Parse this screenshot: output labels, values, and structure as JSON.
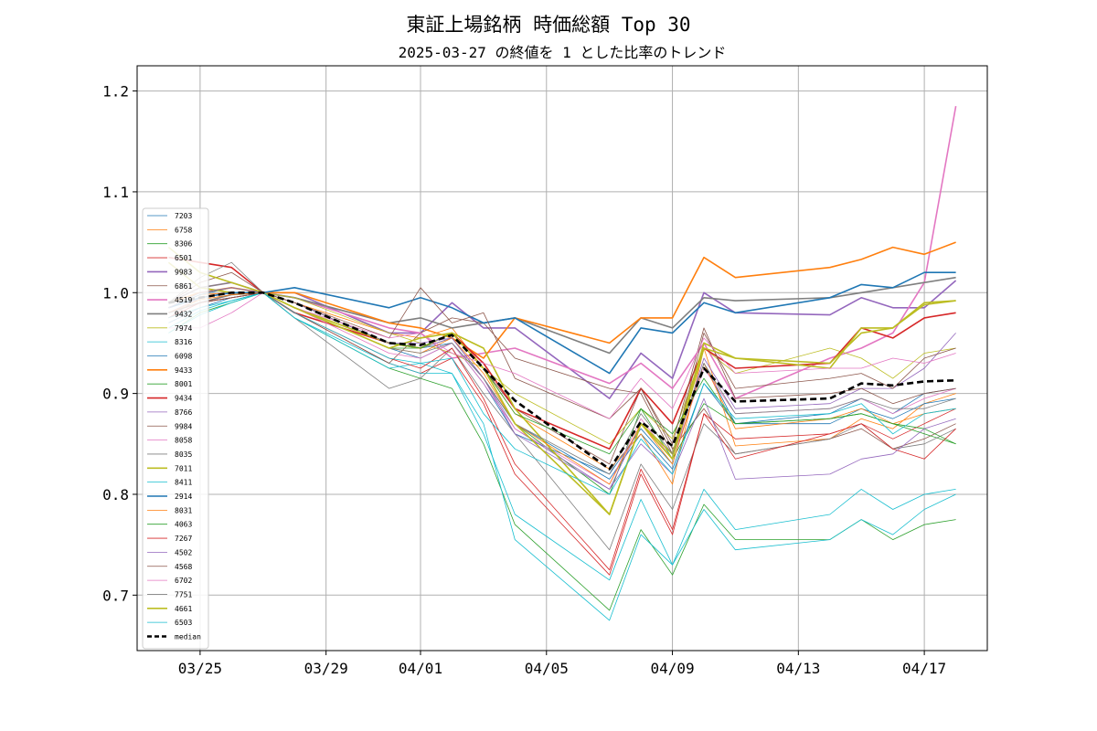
{
  "chart_data": {
    "type": "line",
    "title": "東証上場銘柄 時価総額 Top 30",
    "subtitle": "2025-03-27 の終値を 1 とした比率のトレンド",
    "xlabel": "",
    "ylabel": "",
    "ylim": [
      0.645,
      1.225
    ],
    "xlim": [
      "2025-03-23",
      "2025-04-19"
    ],
    "grid": true,
    "legend_position": "left",
    "x_ticks": [
      {
        "date": "2025-03-25",
        "label": "03/25"
      },
      {
        "date": "2025-03-29",
        "label": "03/29"
      },
      {
        "date": "2025-04-01",
        "label": "04/01"
      },
      {
        "date": "2025-04-05",
        "label": "04/05"
      },
      {
        "date": "2025-04-09",
        "label": "04/09"
      },
      {
        "date": "2025-04-13",
        "label": "04/13"
      },
      {
        "date": "2025-04-17",
        "label": "04/17"
      }
    ],
    "y_ticks": [
      {
        "value": 0.7,
        "label": "0.7"
      },
      {
        "value": 0.8,
        "label": "0.8"
      },
      {
        "value": 0.9,
        "label": "0.9"
      },
      {
        "value": 1.0,
        "label": "1.0"
      },
      {
        "value": 1.1,
        "label": "1.1"
      },
      {
        "value": 1.2,
        "label": "1.2"
      }
    ],
    "x": [
      "2025-03-24",
      "2025-03-25",
      "2025-03-26",
      "2025-03-27",
      "2025-03-28",
      "2025-03-31",
      "2025-04-01",
      "2025-04-02",
      "2025-04-03",
      "2025-04-04",
      "2025-04-07",
      "2025-04-08",
      "2025-04-09",
      "2025-04-10",
      "2025-04-11",
      "2025-04-14",
      "2025-04-15",
      "2025-04-16",
      "2025-04-17",
      "2025-04-18"
    ],
    "series": [
      {
        "name": "7203",
        "color": "#1f77b4",
        "width": 0.8,
        "values": [
          0.97,
          0.985,
          0.995,
          1.0,
          0.985,
          0.945,
          0.935,
          0.95,
          0.915,
          0.87,
          0.815,
          0.86,
          0.825,
          0.91,
          0.87,
          0.88,
          0.895,
          0.88,
          0.9,
          0.905
        ]
      },
      {
        "name": "6758",
        "color": "#ff7f0e",
        "width": 0.8,
        "values": [
          0.985,
          0.998,
          1.0,
          1.0,
          0.99,
          0.96,
          0.955,
          0.965,
          0.925,
          0.88,
          0.825,
          0.86,
          0.81,
          0.945,
          0.848,
          0.855,
          0.875,
          0.865,
          0.89,
          0.9
        ]
      },
      {
        "name": "8306",
        "color": "#2ca02c",
        "width": 0.8,
        "values": [
          0.96,
          0.98,
          0.99,
          1.0,
          0.975,
          0.925,
          0.915,
          0.905,
          0.85,
          0.77,
          0.685,
          0.765,
          0.72,
          0.79,
          0.755,
          0.755,
          0.775,
          0.755,
          0.77,
          0.775
        ]
      },
      {
        "name": "6501",
        "color": "#d62728",
        "width": 0.8,
        "values": [
          0.975,
          0.99,
          0.998,
          1.0,
          0.98,
          0.93,
          0.92,
          0.935,
          0.89,
          0.82,
          0.72,
          0.82,
          0.76,
          0.88,
          0.855,
          0.86,
          0.87,
          0.855,
          0.87,
          0.885
        ]
      },
      {
        "name": "9983",
        "color": "#9467bd",
        "width": 1.6,
        "values": [
          0.99,
          1.005,
          1.01,
          1.0,
          1.0,
          0.96,
          0.96,
          0.99,
          0.965,
          0.965,
          0.895,
          0.94,
          0.915,
          1.0,
          0.98,
          0.978,
          0.995,
          0.985,
          0.985,
          1.012
        ]
      },
      {
        "name": "6861",
        "color": "#8c564b",
        "width": 0.8,
        "values": [
          0.975,
          0.995,
          1.0,
          1.0,
          0.99,
          0.95,
          0.945,
          0.96,
          0.925,
          0.885,
          0.83,
          0.905,
          0.845,
          0.885,
          0.84,
          0.855,
          0.865,
          0.845,
          0.855,
          0.87
        ]
      },
      {
        "name": "4519",
        "color": "#e377c2",
        "width": 1.6,
        "values": [
          0.985,
          0.995,
          1.0,
          1.0,
          0.995,
          0.965,
          0.96,
          0.935,
          0.94,
          0.945,
          0.91,
          0.93,
          0.905,
          0.95,
          0.895,
          0.935,
          0.945,
          0.96,
          1.01,
          1.185
        ]
      },
      {
        "name": "9432",
        "color": "#7f7f7f",
        "width": 1.6,
        "values": [
          0.98,
          0.99,
          0.998,
          1.0,
          0.995,
          0.97,
          0.975,
          0.965,
          0.97,
          0.975,
          0.94,
          0.975,
          0.965,
          0.995,
          0.992,
          0.995,
          1.0,
          1.005,
          1.01,
          1.015
        ]
      },
      {
        "name": "7974",
        "color": "#bcbd22",
        "width": 0.8,
        "values": [
          0.99,
          1.005,
          1.01,
          1.0,
          0.995,
          0.96,
          0.95,
          0.94,
          0.925,
          0.9,
          0.85,
          0.885,
          0.855,
          0.945,
          0.92,
          0.945,
          0.935,
          0.915,
          0.94,
          0.945
        ]
      },
      {
        "name": "8316",
        "color": "#17becf",
        "width": 0.8,
        "values": [
          0.96,
          0.978,
          0.99,
          1.0,
          0.975,
          0.93,
          0.92,
          0.92,
          0.86,
          0.78,
          0.715,
          0.795,
          0.73,
          0.805,
          0.765,
          0.78,
          0.805,
          0.785,
          0.8,
          0.805
        ]
      },
      {
        "name": "6098",
        "color": "#1f77b4",
        "width": 0.8,
        "values": [
          0.985,
          0.998,
          1.005,
          1.0,
          0.985,
          0.95,
          0.945,
          0.95,
          0.91,
          0.86,
          0.82,
          0.865,
          0.83,
          0.93,
          0.87,
          0.87,
          0.885,
          0.875,
          0.89,
          0.895
        ]
      },
      {
        "name": "9433",
        "color": "#ff7f0e",
        "width": 1.6,
        "values": [
          0.99,
          1.0,
          1.005,
          1.0,
          1.0,
          0.97,
          0.965,
          0.955,
          0.935,
          0.975,
          0.95,
          0.975,
          0.975,
          1.035,
          1.015,
          1.025,
          1.033,
          1.045,
          1.038,
          1.05
        ]
      },
      {
        "name": "8001",
        "color": "#2ca02c",
        "width": 0.8,
        "values": [
          0.975,
          0.99,
          0.995,
          1.0,
          0.985,
          0.945,
          0.945,
          0.955,
          0.915,
          0.87,
          0.8,
          0.885,
          0.835,
          0.89,
          0.87,
          0.875,
          0.88,
          0.87,
          0.86,
          0.85
        ]
      },
      {
        "name": "9434",
        "color": "#d62728",
        "width": 1.6,
        "values": [
          1.035,
          1.03,
          1.025,
          1.0,
          0.98,
          0.95,
          0.945,
          0.96,
          0.93,
          0.885,
          0.845,
          0.905,
          0.87,
          0.945,
          0.925,
          0.93,
          0.965,
          0.955,
          0.975,
          0.98
        ]
      },
      {
        "name": "8766",
        "color": "#9467bd",
        "width": 0.8,
        "values": [
          0.98,
          0.995,
          1.0,
          1.0,
          0.985,
          0.95,
          0.945,
          0.955,
          0.915,
          0.865,
          0.805,
          0.87,
          0.835,
          0.935,
          0.885,
          0.89,
          0.905,
          0.905,
          0.925,
          0.96
        ]
      },
      {
        "name": "9984",
        "color": "#8c564b",
        "width": 0.8,
        "values": [
          0.99,
          1.01,
          1.02,
          1.0,
          0.98,
          0.93,
          0.96,
          0.975,
          0.97,
          0.935,
          0.905,
          0.9,
          0.84,
          0.96,
          0.905,
          0.915,
          0.92,
          0.905,
          0.935,
          0.945
        ]
      },
      {
        "name": "8058",
        "color": "#e377c2",
        "width": 0.8,
        "values": [
          0.975,
          0.99,
          0.995,
          1.0,
          0.985,
          0.94,
          0.935,
          0.95,
          0.91,
          0.865,
          0.81,
          0.875,
          0.835,
          0.925,
          0.88,
          0.885,
          0.895,
          0.88,
          0.895,
          0.905
        ]
      },
      {
        "name": "8035",
        "color": "#7f7f7f",
        "width": 0.8,
        "values": [
          0.99,
          1.015,
          1.03,
          1.0,
          0.975,
          0.905,
          0.915,
          0.945,
          0.9,
          0.86,
          0.745,
          0.83,
          0.785,
          0.87,
          0.84,
          0.855,
          0.87,
          0.845,
          0.85,
          0.865
        ]
      },
      {
        "name": "7011",
        "color": "#bcbd22",
        "width": 1.6,
        "values": [
          1.03,
          1.005,
          1.0,
          1.0,
          0.985,
          0.95,
          0.945,
          0.96,
          0.945,
          0.885,
          0.78,
          0.87,
          0.84,
          0.95,
          0.935,
          0.925,
          0.965,
          0.965,
          0.988,
          0.992
        ]
      },
      {
        "name": "8411",
        "color": "#17becf",
        "width": 0.8,
        "values": [
          0.965,
          0.982,
          0.992,
          1.0,
          0.975,
          0.925,
          0.93,
          0.92,
          0.87,
          0.755,
          0.675,
          0.76,
          0.73,
          0.785,
          0.745,
          0.755,
          0.775,
          0.76,
          0.785,
          0.8
        ]
      },
      {
        "name": "2914",
        "color": "#1f77b4",
        "width": 1.6,
        "values": [
          0.985,
          0.995,
          1.0,
          1.0,
          1.005,
          0.985,
          0.995,
          0.985,
          0.97,
          0.975,
          0.92,
          0.965,
          0.96,
          0.99,
          0.98,
          0.995,
          1.008,
          1.005,
          1.02,
          1.02
        ]
      },
      {
        "name": "8031",
        "color": "#ff7f0e",
        "width": 0.8,
        "values": [
          0.98,
          0.993,
          0.998,
          1.0,
          0.985,
          0.945,
          0.94,
          0.955,
          0.92,
          0.87,
          0.81,
          0.87,
          0.83,
          0.93,
          0.865,
          0.875,
          0.885,
          0.87,
          0.88,
          0.885
        ]
      },
      {
        "name": "4063",
        "color": "#2ca02c",
        "width": 0.8,
        "values": [
          0.985,
          1.0,
          1.005,
          1.0,
          0.99,
          0.95,
          0.945,
          0.96,
          0.925,
          0.88,
          0.84,
          0.885,
          0.86,
          0.915,
          0.87,
          0.875,
          0.88,
          0.87,
          0.865,
          0.85
        ]
      },
      {
        "name": "7267",
        "color": "#d62728",
        "width": 0.8,
        "values": [
          0.975,
          0.99,
          0.995,
          1.0,
          0.98,
          0.935,
          0.925,
          0.945,
          0.895,
          0.83,
          0.725,
          0.825,
          0.765,
          0.88,
          0.835,
          0.86,
          0.87,
          0.845,
          0.835,
          0.865
        ]
      },
      {
        "name": "4502",
        "color": "#9467bd",
        "width": 0.8,
        "values": [
          0.985,
          1.0,
          1.005,
          1.0,
          0.99,
          0.95,
          0.95,
          0.955,
          0.915,
          0.86,
          0.805,
          0.85,
          0.82,
          0.895,
          0.815,
          0.82,
          0.835,
          0.84,
          0.865,
          0.875
        ]
      },
      {
        "name": "4568",
        "color": "#8c564b",
        "width": 0.8,
        "values": [
          0.98,
          0.99,
          0.995,
          1.0,
          0.99,
          0.955,
          1.005,
          0.97,
          0.98,
          0.915,
          0.875,
          0.905,
          0.85,
          0.965,
          0.895,
          0.9,
          0.905,
          0.89,
          0.9,
          0.905
        ]
      },
      {
        "name": "6702",
        "color": "#e377c2",
        "width": 0.8,
        "values": [
          0.965,
          0.965,
          0.98,
          1.0,
          0.985,
          0.955,
          0.96,
          0.94,
          0.93,
          0.92,
          0.875,
          0.915,
          0.885,
          0.955,
          0.92,
          0.925,
          0.925,
          0.935,
          0.93,
          0.94
        ]
      },
      {
        "name": "7751",
        "color": "#7f7f7f",
        "width": 0.8,
        "values": [
          0.99,
          1.005,
          1.01,
          1.0,
          0.985,
          0.945,
          0.94,
          0.95,
          0.915,
          0.87,
          0.82,
          0.88,
          0.84,
          0.93,
          0.88,
          0.885,
          0.895,
          0.885,
          0.885,
          0.895
        ]
      },
      {
        "name": "4661",
        "color": "#bcbd22",
        "width": 1.6,
        "values": [
          1.045,
          1.02,
          1.01,
          1.0,
          0.985,
          0.945,
          0.955,
          0.96,
          0.925,
          0.87,
          0.78,
          0.87,
          0.835,
          0.945,
          0.935,
          0.93,
          0.96,
          0.965,
          0.99,
          0.992
        ]
      },
      {
        "name": "6503",
        "color": "#17becf",
        "width": 0.8,
        "values": [
          0.975,
          0.985,
          0.992,
          1.0,
          0.98,
          0.935,
          0.93,
          0.935,
          0.88,
          0.845,
          0.8,
          0.855,
          0.82,
          0.91,
          0.875,
          0.88,
          0.89,
          0.86,
          0.88,
          0.885
        ]
      },
      {
        "name": "median",
        "color": "#000000",
        "width": 2.6,
        "dashed": true,
        "values": [
          0.99,
          0.995,
          1.0,
          1.0,
          0.99,
          0.95,
          0.948,
          0.958,
          0.925,
          0.893,
          0.825,
          0.872,
          0.848,
          0.925,
          0.892,
          0.895,
          0.91,
          0.908,
          0.912,
          0.913
        ]
      }
    ]
  }
}
